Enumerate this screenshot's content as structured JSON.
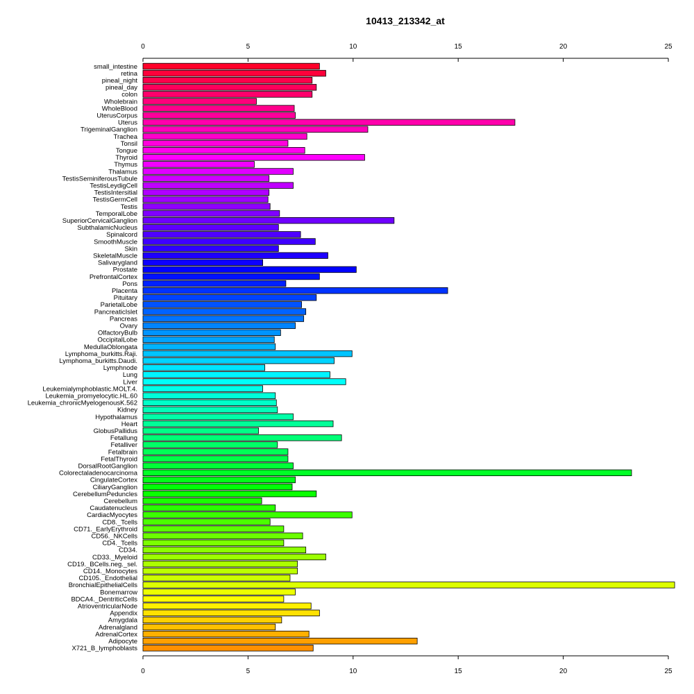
{
  "chart_data": {
    "type": "bar",
    "orientation": "horizontal",
    "title": "10413_213342_at",
    "xlabel": "",
    "ylabel": "",
    "xlim": [
      0,
      25
    ],
    "x_ticks": [
      0,
      5,
      10,
      15,
      20,
      25
    ],
    "axes": [
      "top",
      "bottom"
    ],
    "grid": false,
    "legend": "none",
    "color_scheme": "rainbow",
    "categories": [
      "small_intestine",
      "retina",
      "pineal_night",
      "pineal_day",
      "colon",
      "Wholebrain",
      "WholeBlood",
      "UterusCorpus",
      "Uterus",
      "TrigeminalGanglion",
      "Trachea",
      "Tonsil",
      "Tongue",
      "Thyroid",
      "Thymus",
      "Thalamus",
      "TestisSeminiferousTubule",
      "TestisLeydigCell",
      "TestisIntersitial",
      "TestisGermCell",
      "Testis",
      "TemporalLobe",
      "SuperiorCervicalGanglion",
      "SubthalamicNucleus",
      "Spinalcord",
      "SmoothMuscle",
      "Skin",
      "SkeletalMuscle",
      "Salivarygland",
      "Prostate",
      "PrefrontalCortex",
      "Pons",
      "Placenta",
      "Pituitary",
      "ParietalLobe",
      "PancreaticIslet",
      "Pancreas",
      "Ovary",
      "OlfactoryBulb",
      "OccipitalLobe",
      "MedullaOblongata",
      "Lymphoma_burkitts.Raji.",
      "Lymphoma_burkitts.Daudi.",
      "Lymphnode",
      "Lung",
      "Liver",
      "Leukemialymphoblastic.MOLT.4.",
      "Leukemia_promyelocytic.HL.60",
      "Leukemia_chronicMyelogenousK.562",
      "Kidney",
      "Hypothalamus",
      "Heart",
      "GlobusPallidus",
      "Fetallung",
      "Fetalliver",
      "Fetalbrain",
      "FetalThyroid",
      "DorsalRootGanglion",
      "Colorectaladenocarcinoma",
      "CingulateCortex",
      "CiliaryGanglion",
      "CerebellumPeduncles",
      "Cerebellum",
      "Caudatenucleus",
      "CardiacMyocytes",
      "CD8._Tcells",
      "CD71._EarlyErythroid",
      "CD56._NKCells",
      "CD4._Tcells",
      "CD34.",
      "CD33._Myeloid",
      "CD19._BCells.neg._sel.",
      "CD14._Monocytes",
      "CD105._Endothelial",
      "BronchialEpithelialCells",
      "Bonemarrow",
      "BDCA4._DentriticCells",
      "AtrioventricularNode",
      "Appendix",
      "Amygdala",
      "Adrenalgland",
      "AdrenalCortex",
      "Adipocyte",
      "X721_B_lymphoblasts"
    ],
    "values": [
      8.4,
      8.7,
      8.05,
      8.25,
      8.05,
      5.4,
      7.2,
      7.25,
      17.7,
      10.7,
      7.8,
      6.9,
      7.7,
      10.55,
      5.3,
      7.15,
      6.0,
      7.15,
      6.0,
      5.95,
      6.05,
      6.5,
      11.95,
      6.45,
      7.5,
      8.2,
      6.45,
      8.8,
      5.7,
      10.15,
      8.4,
      6.8,
      14.5,
      8.25,
      7.55,
      7.75,
      7.65,
      7.25,
      6.55,
      6.25,
      6.3,
      9.95,
      9.1,
      5.8,
      8.9,
      9.65,
      5.7,
      6.3,
      6.35,
      6.4,
      7.15,
      9.05,
      5.5,
      9.45,
      6.4,
      6.9,
      6.9,
      7.15,
      23.25,
      7.25,
      7.1,
      8.25,
      5.65,
      6.3,
      9.95,
      6.05,
      6.7,
      7.6,
      6.7,
      7.75,
      8.7,
      7.35,
      7.35,
      7.0,
      25.3,
      7.25,
      6.7,
      8.0,
      8.4,
      6.6,
      6.3,
      7.9,
      13.05,
      8.1
    ]
  }
}
